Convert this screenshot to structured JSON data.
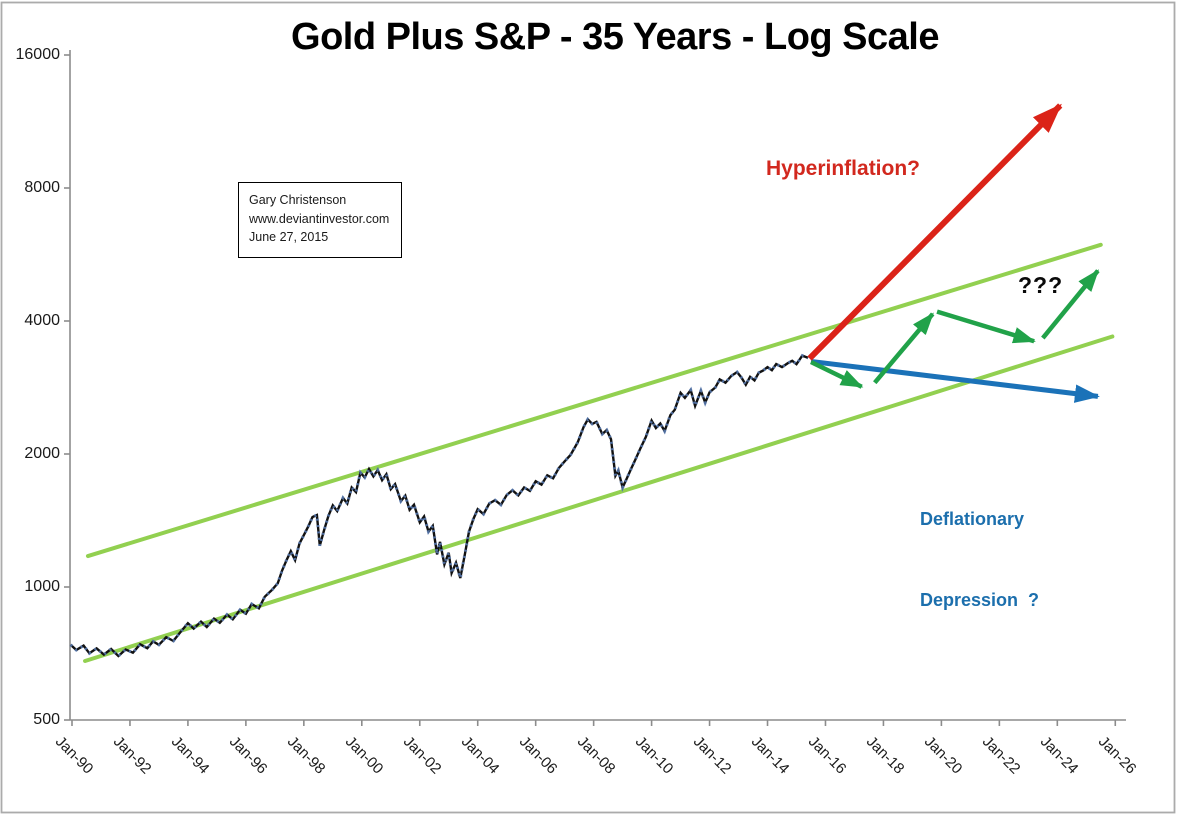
{
  "figure": {
    "title": "Gold Plus S&P - 35 Years - Log Scale",
    "credit_box": {
      "lines": [
        "Gary Christenson",
        "www.deviantinvestor.com",
        "June 27, 2015"
      ]
    },
    "annotations": {
      "hyperinflation_label": "Hyperinflation?",
      "unknown_scenario_label": "???",
      "deflation_label_line1": "Deflationary",
      "deflation_label_line2": "Depression  ?"
    }
  },
  "colors": {
    "background": "#ffffff",
    "border_gray": "#ababab",
    "axis_gray": "#8c8c8c",
    "price_line": "#111111",
    "price_markers": "#5a7db4",
    "channel_green": "#92d050",
    "arrow_green": "#21a249",
    "arrow_red": "#db2318",
    "arrow_blue": "#1b72b8",
    "text_red": "#d2281e",
    "text_blue": "#1c6fad"
  },
  "chart_data": {
    "type": "line",
    "title": "Gold Plus S&P - 35 Years - Log Scale",
    "xlabel": "",
    "ylabel": "",
    "grid": false,
    "legend": "none",
    "y_axis": {
      "scale": "log2",
      "range": [
        500,
        16000
      ],
      "ticks": [
        500,
        1000,
        2000,
        4000,
        8000,
        16000
      ],
      "tick_labels": [
        "500",
        "1000",
        "2000",
        "4000",
        "8000",
        "16000"
      ]
    },
    "x_axis": {
      "range_years": [
        1990,
        2026
      ],
      "ticks": [
        "Jan-90",
        "Jan-92",
        "Jan-94",
        "Jan-96",
        "Jan-98",
        "Jan-00",
        "Jan-02",
        "Jan-04",
        "Jan-06",
        "Jan-08",
        "Jan-10",
        "Jan-12",
        "Jan-14",
        "Jan-16",
        "Jan-18",
        "Jan-20",
        "Jan-22",
        "Jan-24",
        "Jan-26"
      ]
    },
    "series": [
      {
        "name": "gold-plus-sp-sum",
        "style": "black line with blue markers",
        "points": [
          [
            1989.95,
            740
          ],
          [
            1990.15,
            720
          ],
          [
            1990.4,
            737
          ],
          [
            1990.6,
            708
          ],
          [
            1990.85,
            726
          ],
          [
            1991.1,
            703
          ],
          [
            1991.35,
            724
          ],
          [
            1991.6,
            698
          ],
          [
            1991.85,
            722
          ],
          [
            1992.1,
            710
          ],
          [
            1992.35,
            742
          ],
          [
            1992.6,
            727
          ],
          [
            1992.8,
            753
          ],
          [
            1993.0,
            740
          ],
          [
            1993.25,
            770
          ],
          [
            1993.5,
            755
          ],
          [
            1993.75,
            792
          ],
          [
            1994.0,
            828
          ],
          [
            1994.2,
            805
          ],
          [
            1994.45,
            835
          ],
          [
            1994.65,
            812
          ],
          [
            1994.9,
            848
          ],
          [
            1995.1,
            830
          ],
          [
            1995.35,
            866
          ],
          [
            1995.55,
            845
          ],
          [
            1995.8,
            888
          ],
          [
            1996.0,
            870
          ],
          [
            1996.2,
            915
          ],
          [
            1996.45,
            895
          ],
          [
            1996.65,
            950
          ],
          [
            1996.9,
            985
          ],
          [
            1997.1,
            1020
          ],
          [
            1997.25,
            1090
          ],
          [
            1997.4,
            1150
          ],
          [
            1997.55,
            1205
          ],
          [
            1997.7,
            1150
          ],
          [
            1997.85,
            1255
          ],
          [
            1998.0,
            1310
          ],
          [
            1998.15,
            1370
          ],
          [
            1998.3,
            1440
          ],
          [
            1998.45,
            1455
          ],
          [
            1998.55,
            1240
          ],
          [
            1998.7,
            1345
          ],
          [
            1998.85,
            1450
          ],
          [
            1999.0,
            1530
          ],
          [
            1999.15,
            1485
          ],
          [
            1999.35,
            1590
          ],
          [
            1999.5,
            1545
          ],
          [
            1999.65,
            1680
          ],
          [
            1999.8,
            1640
          ],
          [
            1999.95,
            1815
          ],
          [
            2000.1,
            1770
          ],
          [
            2000.25,
            1850
          ],
          [
            2000.4,
            1780
          ],
          [
            2000.55,
            1840
          ],
          [
            2000.7,
            1745
          ],
          [
            2000.85,
            1800
          ],
          [
            2001.0,
            1665
          ],
          [
            2001.15,
            1710
          ],
          [
            2001.35,
            1565
          ],
          [
            2001.5,
            1610
          ],
          [
            2001.65,
            1495
          ],
          [
            2001.8,
            1535
          ],
          [
            2002.0,
            1400
          ],
          [
            2002.15,
            1445
          ],
          [
            2002.3,
            1335
          ],
          [
            2002.45,
            1375
          ],
          [
            2002.6,
            1185
          ],
          [
            2002.7,
            1265
          ],
          [
            2002.85,
            1125
          ],
          [
            2003.0,
            1195
          ],
          [
            2003.1,
            1075
          ],
          [
            2003.25,
            1135
          ],
          [
            2003.4,
            1048
          ],
          [
            2003.55,
            1180
          ],
          [
            2003.7,
            1335
          ],
          [
            2003.85,
            1425
          ],
          [
            2004.0,
            1500
          ],
          [
            2004.2,
            1462
          ],
          [
            2004.4,
            1545
          ],
          [
            2004.6,
            1572
          ],
          [
            2004.8,
            1535
          ],
          [
            2005.0,
            1615
          ],
          [
            2005.2,
            1655
          ],
          [
            2005.4,
            1612
          ],
          [
            2005.6,
            1680
          ],
          [
            2005.8,
            1650
          ],
          [
            2006.0,
            1735
          ],
          [
            2006.2,
            1705
          ],
          [
            2006.4,
            1790
          ],
          [
            2006.6,
            1762
          ],
          [
            2006.8,
            1860
          ],
          [
            2007.0,
            1925
          ],
          [
            2007.2,
            1990
          ],
          [
            2007.45,
            2125
          ],
          [
            2007.65,
            2300
          ],
          [
            2007.8,
            2395
          ],
          [
            2007.95,
            2340
          ],
          [
            2008.1,
            2365
          ],
          [
            2008.3,
            2220
          ],
          [
            2008.45,
            2265
          ],
          [
            2008.6,
            2160
          ],
          [
            2008.75,
            1785
          ],
          [
            2008.85,
            1835
          ],
          [
            2009.0,
            1680
          ],
          [
            2009.15,
            1765
          ],
          [
            2009.3,
            1855
          ],
          [
            2009.45,
            1950
          ],
          [
            2009.6,
            2050
          ],
          [
            2009.8,
            2185
          ],
          [
            2010.0,
            2380
          ],
          [
            2010.15,
            2290
          ],
          [
            2010.3,
            2345
          ],
          [
            2010.45,
            2255
          ],
          [
            2010.65,
            2450
          ],
          [
            2010.8,
            2520
          ],
          [
            2011.0,
            2750
          ],
          [
            2011.15,
            2680
          ],
          [
            2011.35,
            2790
          ],
          [
            2011.5,
            2570
          ],
          [
            2011.7,
            2780
          ],
          [
            2011.85,
            2615
          ],
          [
            2012.0,
            2760
          ],
          [
            2012.2,
            2830
          ],
          [
            2012.35,
            2950
          ],
          [
            2012.55,
            2900
          ],
          [
            2012.75,
            3005
          ],
          [
            2012.95,
            3065
          ],
          [
            2013.1,
            2980
          ],
          [
            2013.25,
            2870
          ],
          [
            2013.4,
            2990
          ],
          [
            2013.55,
            2935
          ],
          [
            2013.7,
            3055
          ],
          [
            2013.85,
            3090
          ],
          [
            2014.0,
            3145
          ],
          [
            2014.15,
            3095
          ],
          [
            2014.3,
            3195
          ],
          [
            2014.5,
            3145
          ],
          [
            2014.7,
            3210
          ],
          [
            2014.85,
            3250
          ],
          [
            2015.0,
            3195
          ],
          [
            2015.2,
            3340
          ],
          [
            2015.4,
            3300
          ]
        ]
      }
    ],
    "channel": {
      "upper_trendline": [
        [
          1990.55,
          1175
        ],
        [
          2025.5,
          5950
        ]
      ],
      "lower_trendline": [
        [
          1990.45,
          680
        ],
        [
          2025.9,
          3690
        ]
      ]
    },
    "projections": [
      {
        "id": "hyperinflation-arrow",
        "label": "Hyperinflation?",
        "color_key": "arrow_red",
        "stroke_width": 6,
        "points": [
          [
            2015.45,
            3290
          ],
          [
            2024.1,
            12300
          ]
        ]
      },
      {
        "id": "deflation-arrow",
        "label": "Deflationary Depression ?",
        "color_key": "arrow_blue",
        "stroke_width": 5,
        "points": [
          [
            2015.5,
            3240
          ],
          [
            2025.4,
            2700
          ]
        ]
      },
      {
        "id": "scenario-arrow-1",
        "label": "???",
        "color_key": "arrow_green",
        "stroke_width": 4.5,
        "points": [
          [
            2015.5,
            3230
          ],
          [
            2017.25,
            2840
          ]
        ]
      },
      {
        "id": "scenario-arrow-2",
        "label": "???",
        "color_key": "arrow_green",
        "stroke_width": 4.5,
        "points": [
          [
            2017.7,
            2900
          ],
          [
            2019.7,
            4150
          ]
        ]
      },
      {
        "id": "scenario-arrow-3",
        "label": "???",
        "color_key": "arrow_green",
        "stroke_width": 4.5,
        "points": [
          [
            2019.85,
            4200
          ],
          [
            2023.2,
            3600
          ]
        ]
      },
      {
        "id": "scenario-arrow-4",
        "label": "???",
        "color_key": "arrow_green",
        "stroke_width": 4.5,
        "points": [
          [
            2023.5,
            3660
          ],
          [
            2025.4,
            5200
          ]
        ]
      }
    ]
  }
}
